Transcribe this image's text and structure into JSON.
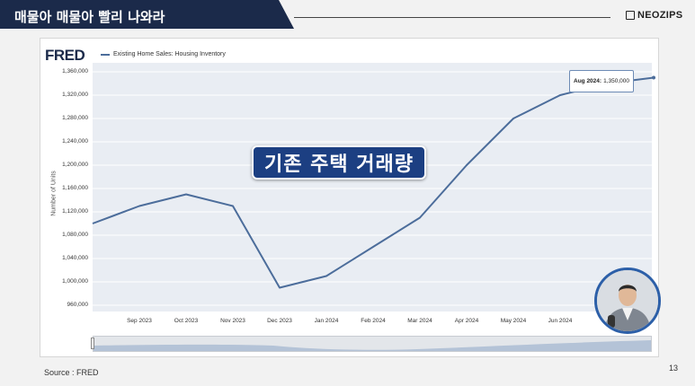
{
  "header": {
    "title": "매물아 매물아 빨리 나와라",
    "brand": "NEOZIPS"
  },
  "fred_logo": "FRED",
  "overlay_title": "기존 주택 거래량",
  "footer": {
    "source": "Source : FRED",
    "page_number": "13"
  },
  "tooltip": {
    "date": "Aug 2024:",
    "value": "1,350,000"
  },
  "chart_data": {
    "type": "line",
    "legend": "Existing Home Sales: Housing Inventory",
    "ylabel": "Number of Units",
    "ylim": [
      960000,
      1360000
    ],
    "yticks": [
      "960,000",
      "1,000,000",
      "1,040,000",
      "1,080,000",
      "1,120,000",
      "1,160,000",
      "1,200,000",
      "1,240,000",
      "1,280,000",
      "1,320,000",
      "1,360,000"
    ],
    "x_tick_labels": [
      "Sep 2023",
      "Oct 2023",
      "Nov 2023",
      "Dec 2023",
      "Jan 2024",
      "Feb 2024",
      "Mar 2024",
      "Apr 2024",
      "May 2024",
      "Jun 2024"
    ],
    "series": [
      {
        "name": "Existing Home Sales: Housing Inventory",
        "x": [
          "Aug 2023",
          "Sep 2023",
          "Oct 2023",
          "Nov 2023",
          "Dec 2023",
          "Jan 2024",
          "Feb 2024",
          "Mar 2024",
          "Apr 2024",
          "May 2024",
          "Jun 2024",
          "Jul 2024",
          "Aug 2024"
        ],
        "values": [
          1100000,
          1130000,
          1150000,
          1130000,
          990000,
          1010000,
          1060000,
          1110000,
          1200000,
          1280000,
          1320000,
          1340000,
          1350000
        ]
      }
    ],
    "color": "#4c6d9b",
    "grid": true
  }
}
